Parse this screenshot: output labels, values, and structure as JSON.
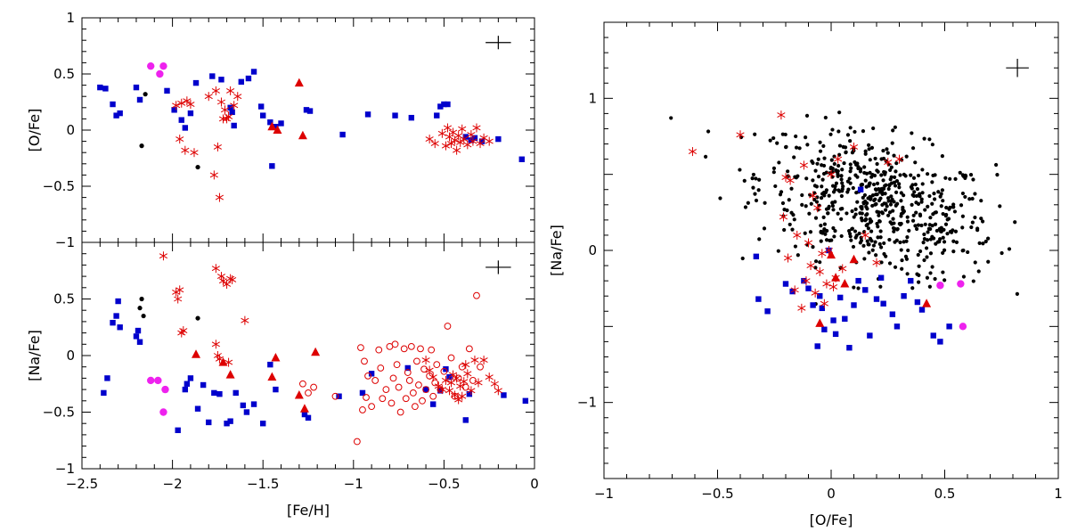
{
  "colors": {
    "blue_square": "#0000cc",
    "red": "#dd0000",
    "magenta": "#ee22ee",
    "black": "#000000"
  },
  "chart_data": [
    {
      "type": "scatter",
      "panel": "top-left",
      "xlabel": "",
      "ylabel": "[O/Fe]",
      "xlim": [
        -2.5,
        0
      ],
      "ylim": [
        -1,
        1
      ],
      "xticks": [
        -2.5,
        -2,
        -1.5,
        -1,
        -0.5,
        0
      ],
      "yticks": [
        -1,
        -0.5,
        0,
        0.5,
        1
      ],
      "ytick_labels": [
        "−1",
        "−0.5",
        "0",
        "0.5",
        "1"
      ],
      "error_bar": {
        "x": -0.2,
        "y": 0.78,
        "dx": 0.07,
        "dy": 0.06
      },
      "series": [
        {
          "marker": "square",
          "color": "blue",
          "x": [
            -2.4,
            -2.37,
            -2.33,
            -2.31,
            -2.29,
            -2.2,
            -2.18,
            -2.03,
            -1.99,
            -1.95,
            -1.93,
            -1.9,
            -1.87,
            -1.78,
            -1.73,
            -1.68,
            -1.67,
            -1.66,
            -1.62,
            -1.58,
            -1.55,
            -1.51,
            -1.5,
            -1.46,
            -1.45,
            -1.43,
            -1.4,
            -1.26,
            -1.24,
            -1.06,
            -0.92,
            -0.77,
            -0.68,
            -0.54,
            -0.52,
            -0.5,
            -0.48,
            -0.38,
            -0.35,
            -0.33,
            -0.29,
            -0.2,
            -0.07
          ],
          "y": [
            0.38,
            0.37,
            0.23,
            0.13,
            0.15,
            0.38,
            0.27,
            0.35,
            0.18,
            0.09,
            0.02,
            0.15,
            0.42,
            0.48,
            0.45,
            0.2,
            0.16,
            0.04,
            0.43,
            0.46,
            0.52,
            0.21,
            0.13,
            0.07,
            -0.32,
            0.03,
            0.06,
            0.18,
            0.17,
            -0.04,
            0.14,
            0.13,
            0.11,
            0.13,
            0.21,
            0.23,
            0.23,
            -0.06,
            -0.09,
            -0.07,
            -0.1,
            -0.08,
            -0.26
          ]
        },
        {
          "marker": "asterisk",
          "color": "red",
          "x": [
            -1.98,
            -1.96,
            -1.95,
            -1.93,
            -1.92,
            -1.9,
            -1.88,
            -1.8,
            -1.77,
            -1.76,
            -1.75,
            -1.74,
            -1.73,
            -1.72,
            -1.71,
            -1.7,
            -1.69,
            -1.68,
            -1.66,
            -1.64,
            -0.58,
            -0.55,
            -0.51,
            -0.49,
            -0.48,
            -0.47,
            -0.46,
            -0.45,
            -0.44,
            -0.43,
            -0.42,
            -0.41,
            -0.4,
            -0.39,
            -0.37,
            -0.35,
            -0.34,
            -0.32,
            -0.3,
            -0.28,
            -0.25
          ],
          "y": [
            0.22,
            -0.08,
            0.24,
            -0.18,
            0.26,
            0.23,
            -0.2,
            0.3,
            -0.4,
            0.35,
            -0.15,
            -0.6,
            0.25,
            0.1,
            0.18,
            0.1,
            0.12,
            0.35,
            0.22,
            0.3,
            -0.08,
            -0.12,
            -0.03,
            -0.14,
            0.02,
            -0.06,
            -0.12,
            -0.02,
            -0.09,
            -0.18,
            -0.05,
            -0.11,
            0.01,
            -0.08,
            -0.13,
            -0.04,
            -0.1,
            0.02,
            -0.12,
            -0.07,
            -0.1
          ]
        },
        {
          "marker": "triangle",
          "color": "red",
          "x": [
            -1.45,
            -1.42,
            -1.3,
            -1.28
          ],
          "y": [
            0.03,
            0.0,
            0.42,
            -0.05
          ]
        },
        {
          "marker": "circle",
          "color": "magenta",
          "x": [
            -2.12,
            -2.07,
            -2.05
          ],
          "y": [
            0.57,
            0.5,
            0.57
          ]
        },
        {
          "marker": "dot",
          "color": "black",
          "x": [
            -2.17,
            -2.15,
            -1.86
          ],
          "y": [
            -0.14,
            0.32,
            -0.33
          ]
        }
      ]
    },
    {
      "type": "scatter",
      "panel": "bottom-left",
      "xlabel": "[Fe/H]",
      "ylabel": "[Na/Fe]",
      "xlim": [
        -2.5,
        0
      ],
      "ylim": [
        -1,
        1
      ],
      "xticks": [
        -2.5,
        -2,
        -1.5,
        -1,
        -0.5,
        0
      ],
      "xtick_labels": [
        "−2.5",
        "−2",
        "−1.5",
        "−1",
        "−0.5",
        "0"
      ],
      "yticks": [
        -1,
        -0.5,
        0,
        0.5
      ],
      "ytick_labels": [
        "−1",
        "−0.5",
        "0",
        "0.5"
      ],
      "error_bar": {
        "x": -0.2,
        "y": 0.78,
        "dx": 0.07,
        "dy": 0.06
      },
      "series": [
        {
          "marker": "square",
          "color": "blue",
          "x": [
            -2.38,
            -2.36,
            -2.33,
            -2.31,
            -2.3,
            -2.29,
            -2.2,
            -2.19,
            -2.18,
            -1.97,
            -1.93,
            -1.92,
            -1.9,
            -1.86,
            -1.83,
            -1.8,
            -1.77,
            -1.74,
            -1.7,
            -1.68,
            -1.65,
            -1.61,
            -1.59,
            -1.55,
            -1.5,
            -1.46,
            -1.43,
            -1.27,
            -1.25,
            -1.08,
            -0.95,
            -0.9,
            -0.7,
            -0.6,
            -0.56,
            -0.52,
            -0.49,
            -0.47,
            -0.38,
            -0.36,
            -0.17,
            -0.05
          ],
          "y": [
            -0.33,
            -0.2,
            0.29,
            0.35,
            0.48,
            0.25,
            0.17,
            0.22,
            0.12,
            -0.66,
            -0.3,
            -0.25,
            -0.2,
            -0.47,
            -0.26,
            -0.59,
            -0.33,
            -0.34,
            -0.6,
            -0.58,
            -0.33,
            -0.44,
            -0.5,
            -0.43,
            -0.6,
            -0.08,
            -0.3,
            -0.52,
            -0.55,
            -0.36,
            -0.33,
            -0.16,
            -0.11,
            -0.3,
            -0.43,
            -0.31,
            -0.12,
            -0.19,
            -0.57,
            -0.34,
            -0.35,
            -0.4
          ]
        },
        {
          "marker": "asterisk",
          "color": "red",
          "x": [
            -2.05,
            -1.98,
            -1.97,
            -1.96,
            -1.95,
            -1.94,
            -1.76,
            -1.76,
            -1.75,
            -1.74,
            -1.73,
            -1.72,
            -1.7,
            -1.69,
            -1.68,
            -1.67,
            -1.6,
            -0.6,
            -0.58,
            -0.56,
            -0.53,
            -0.51,
            -0.49,
            -0.47,
            -0.46,
            -0.45,
            -0.44,
            -0.43,
            -0.42,
            -0.41,
            -0.4,
            -0.39,
            -0.38,
            -0.37,
            -0.35,
            -0.33,
            -0.31,
            -0.28,
            -0.25,
            -0.22,
            -0.2
          ],
          "y": [
            0.88,
            0.56,
            0.5,
            0.58,
            0.2,
            0.22,
            0.77,
            0.1,
            0.0,
            -0.03,
            0.7,
            0.66,
            0.63,
            -0.06,
            0.68,
            0.67,
            0.31,
            -0.04,
            -0.13,
            -0.19,
            -0.27,
            -0.3,
            -0.22,
            -0.31,
            -0.24,
            -0.17,
            -0.35,
            -0.2,
            -0.39,
            -0.27,
            -0.36,
            -0.23,
            -0.08,
            -0.16,
            -0.31,
            -0.04,
            -0.24,
            -0.04,
            -0.19,
            -0.25,
            -0.31
          ]
        },
        {
          "marker": "triangle",
          "color": "red",
          "x": [
            -1.87,
            -1.72,
            -1.68,
            -1.45,
            -1.43,
            -1.3,
            -1.27,
            -1.21
          ],
          "y": [
            0.01,
            -0.06,
            -0.17,
            -0.19,
            -0.02,
            -0.35,
            -0.47,
            0.03
          ]
        },
        {
          "marker": "open-circle",
          "color": "red",
          "x": [
            -1.28,
            -1.25,
            -1.22,
            -1.1,
            -0.98,
            -0.96,
            -0.95,
            -0.94,
            -0.93,
            -0.92,
            -0.9,
            -0.88,
            -0.86,
            -0.85,
            -0.84,
            -0.82,
            -0.8,
            -0.79,
            -0.78,
            -0.77,
            -0.76,
            -0.75,
            -0.74,
            -0.72,
            -0.71,
            -0.7,
            -0.69,
            -0.68,
            -0.67,
            -0.66,
            -0.65,
            -0.64,
            -0.63,
            -0.62,
            -0.61,
            -0.6,
            -0.58,
            -0.57,
            -0.56,
            -0.55,
            -0.54,
            -0.52,
            -0.5,
            -0.48,
            -0.46,
            -0.44,
            -0.42,
            -0.4,
            -0.38,
            -0.36,
            -0.34,
            -0.32,
            -0.3
          ],
          "y": [
            -0.25,
            -0.33,
            -0.28,
            -0.36,
            -0.76,
            0.07,
            -0.48,
            -0.05,
            -0.37,
            -0.18,
            -0.45,
            -0.22,
            0.05,
            -0.11,
            -0.38,
            -0.3,
            0.08,
            -0.42,
            -0.2,
            0.1,
            -0.08,
            -0.28,
            -0.5,
            0.06,
            -0.38,
            -0.15,
            -0.22,
            0.08,
            -0.33,
            -0.45,
            -0.05,
            -0.26,
            0.06,
            -0.4,
            -0.12,
            -0.3,
            -0.18,
            0.05,
            -0.36,
            -0.24,
            -0.08,
            -0.3,
            -0.14,
            0.26,
            -0.02,
            -0.36,
            -0.2,
            -0.1,
            -0.28,
            0.06,
            -0.22,
            0.53,
            -0.1
          ]
        },
        {
          "marker": "circle",
          "color": "magenta",
          "x": [
            -2.12,
            -2.08,
            -2.04,
            -2.05
          ],
          "y": [
            -0.22,
            -0.22,
            -0.3,
            -0.5
          ]
        },
        {
          "marker": "dot",
          "color": "black",
          "x": [
            -2.18,
            -2.17,
            -2.16,
            -1.86
          ],
          "y": [
            0.42,
            0.5,
            0.35,
            0.33
          ]
        }
      ]
    },
    {
      "type": "scatter",
      "panel": "right",
      "xlabel": "[O/Fe]",
      "ylabel": "[Na/Fe]",
      "xlim": [
        -1,
        1
      ],
      "ylim": [
        -1.5,
        1.5
      ],
      "xticks": [
        -1,
        -0.5,
        0,
        0.5,
        1
      ],
      "xtick_labels": [
        "−1",
        "−0.5",
        "0",
        "0.5",
        "1"
      ],
      "yticks": [
        -1,
        0,
        1
      ],
      "ytick_labels": [
        "−1",
        "0",
        "1"
      ],
      "error_bar": {
        "x": 0.82,
        "y": 1.2,
        "dx": 0.05,
        "dy": 0.06
      },
      "black_dot_cloud": {
        "count": 620,
        "x_range": [
          -0.8,
          0.82
        ],
        "y_range": [
          -0.4,
          0.93
        ],
        "center": [
          0.2,
          0.3
        ]
      },
      "series": [
        {
          "marker": "square",
          "color": "blue",
          "x": [
            -0.33,
            -0.32,
            -0.28,
            -0.2,
            -0.17,
            -0.12,
            -0.1,
            -0.08,
            -0.06,
            -0.05,
            -0.04,
            -0.03,
            -0.01,
            0.01,
            0.02,
            0.04,
            0.06,
            0.08,
            0.1,
            0.12,
            0.13,
            0.15,
            0.17,
            0.2,
            0.22,
            0.23,
            0.27,
            0.29,
            0.32,
            0.35,
            0.38,
            0.4,
            0.45,
            0.48,
            0.52
          ],
          "y": [
            -0.04,
            -0.32,
            -0.4,
            -0.22,
            -0.27,
            -0.2,
            -0.25,
            -0.36,
            -0.63,
            -0.3,
            -0.38,
            -0.52,
            0.0,
            -0.46,
            -0.55,
            -0.31,
            -0.45,
            -0.64,
            -0.36,
            -0.2,
            0.4,
            -0.26,
            -0.56,
            -0.32,
            -0.18,
            -0.35,
            -0.42,
            -0.5,
            -0.3,
            -0.2,
            -0.34,
            -0.39,
            -0.56,
            -0.6,
            -0.5
          ]
        },
        {
          "marker": "asterisk",
          "color": "red",
          "x": [
            -0.61,
            -0.4,
            -0.22,
            -0.21,
            -0.2,
            -0.19,
            -0.18,
            -0.16,
            -0.15,
            -0.13,
            -0.12,
            -0.11,
            -0.1,
            -0.09,
            -0.08,
            -0.07,
            -0.06,
            -0.05,
            -0.04,
            -0.03,
            -0.02,
            -0.01,
            0.0,
            0.01,
            0.02,
            0.03,
            0.05,
            0.1,
            0.15,
            0.2,
            0.25,
            0.3
          ],
          "y": [
            0.65,
            0.76,
            0.89,
            0.22,
            0.48,
            -0.05,
            0.46,
            -0.26,
            0.1,
            -0.38,
            0.56,
            -0.2,
            0.05,
            -0.1,
            0.36,
            -0.28,
            0.28,
            -0.14,
            -0.02,
            -0.35,
            -0.22,
            0.0,
            0.5,
            -0.24,
            -0.18,
            0.6,
            -0.12,
            0.68,
            0.1,
            -0.08,
            0.58,
            0.6
          ]
        },
        {
          "marker": "triangle",
          "color": "red",
          "x": [
            -0.05,
            0.0,
            0.02,
            0.06,
            0.1,
            0.42
          ],
          "y": [
            -0.48,
            -0.03,
            -0.18,
            -0.22,
            -0.06,
            -0.35
          ]
        },
        {
          "marker": "circle",
          "color": "magenta",
          "x": [
            0.48,
            0.57,
            0.58
          ],
          "y": [
            -0.23,
            -0.22,
            -0.5
          ]
        }
      ]
    }
  ]
}
